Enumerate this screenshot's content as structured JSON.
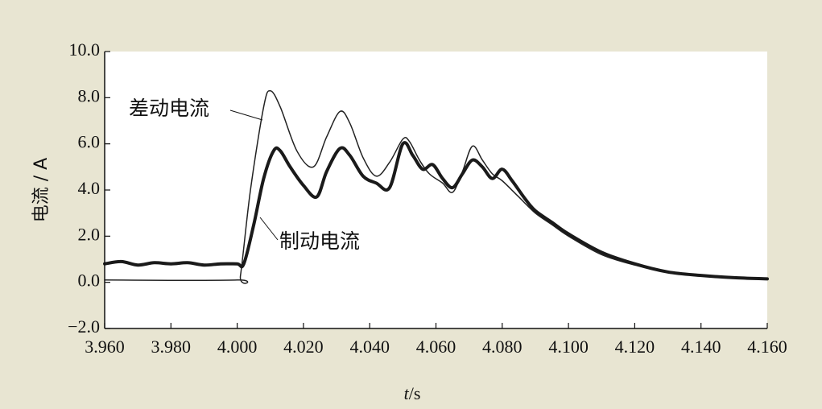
{
  "chart_data": {
    "type": "line",
    "xlabel_var": "t",
    "xlabel_unit": "/s",
    "ylabel": "电流 / A",
    "xlim": [
      3.96,
      4.16
    ],
    "ylim": [
      -2.0,
      10.0
    ],
    "x_ticks": [
      "3.960",
      "3.980",
      "4.000",
      "4.020",
      "4.040",
      "4.060",
      "4.080",
      "4.100",
      "4.120",
      "4.140",
      "4.160"
    ],
    "y_ticks": [
      "10.0",
      "8.0",
      "6.0",
      "4.0",
      "2.0",
      "0.0",
      "−2.0"
    ],
    "grid": false,
    "series": [
      {
        "name": "差动电流",
        "style": "thin",
        "color": "#222222",
        "x": [
          3.96,
          4.0,
          4.001,
          4.004,
          4.008,
          4.01,
          4.013,
          4.018,
          4.023,
          4.027,
          4.031,
          4.034,
          4.038,
          4.042,
          4.046,
          4.05,
          4.052,
          4.055,
          4.058,
          4.062,
          4.065,
          4.068,
          4.071,
          4.074,
          4.077,
          4.08,
          4.085,
          4.09,
          4.095,
          4.1,
          4.11,
          4.12,
          4.13,
          4.14,
          4.15,
          4.16
        ],
        "values": [
          0.1,
          0.1,
          0.3,
          4.0,
          7.6,
          8.3,
          7.6,
          5.7,
          5.0,
          6.3,
          7.4,
          6.9,
          5.4,
          4.6,
          5.2,
          6.2,
          6.1,
          5.3,
          4.7,
          4.3,
          3.9,
          4.8,
          5.9,
          5.3,
          4.7,
          4.4,
          3.7,
          3.0,
          2.5,
          2.0,
          1.2,
          0.75,
          0.45,
          0.3,
          0.2,
          0.15
        ]
      },
      {
        "name": "制动电流",
        "style": "thick",
        "color": "#1a1a1a",
        "x": [
          3.96,
          3.965,
          3.97,
          3.975,
          3.98,
          3.985,
          3.99,
          3.995,
          4.0,
          4.002,
          4.005,
          4.008,
          4.011,
          4.013,
          4.016,
          4.02,
          4.024,
          4.027,
          4.031,
          4.034,
          4.038,
          4.042,
          4.046,
          4.05,
          4.053,
          4.056,
          4.059,
          4.062,
          4.065,
          4.068,
          4.071,
          4.074,
          4.077,
          4.08,
          4.083,
          4.087,
          4.09,
          4.095,
          4.1,
          4.11,
          4.12,
          4.13,
          4.14,
          4.15,
          4.16
        ],
        "values": [
          0.8,
          0.9,
          0.75,
          0.85,
          0.8,
          0.85,
          0.75,
          0.8,
          0.8,
          0.8,
          2.5,
          4.5,
          5.7,
          5.7,
          5.0,
          4.2,
          3.7,
          4.8,
          5.8,
          5.5,
          4.6,
          4.3,
          4.1,
          6.0,
          5.5,
          4.9,
          5.1,
          4.5,
          4.1,
          4.7,
          5.3,
          5.0,
          4.5,
          4.9,
          4.4,
          3.6,
          3.1,
          2.6,
          2.1,
          1.3,
          0.8,
          0.45,
          0.3,
          0.2,
          0.15
        ]
      }
    ]
  }
}
